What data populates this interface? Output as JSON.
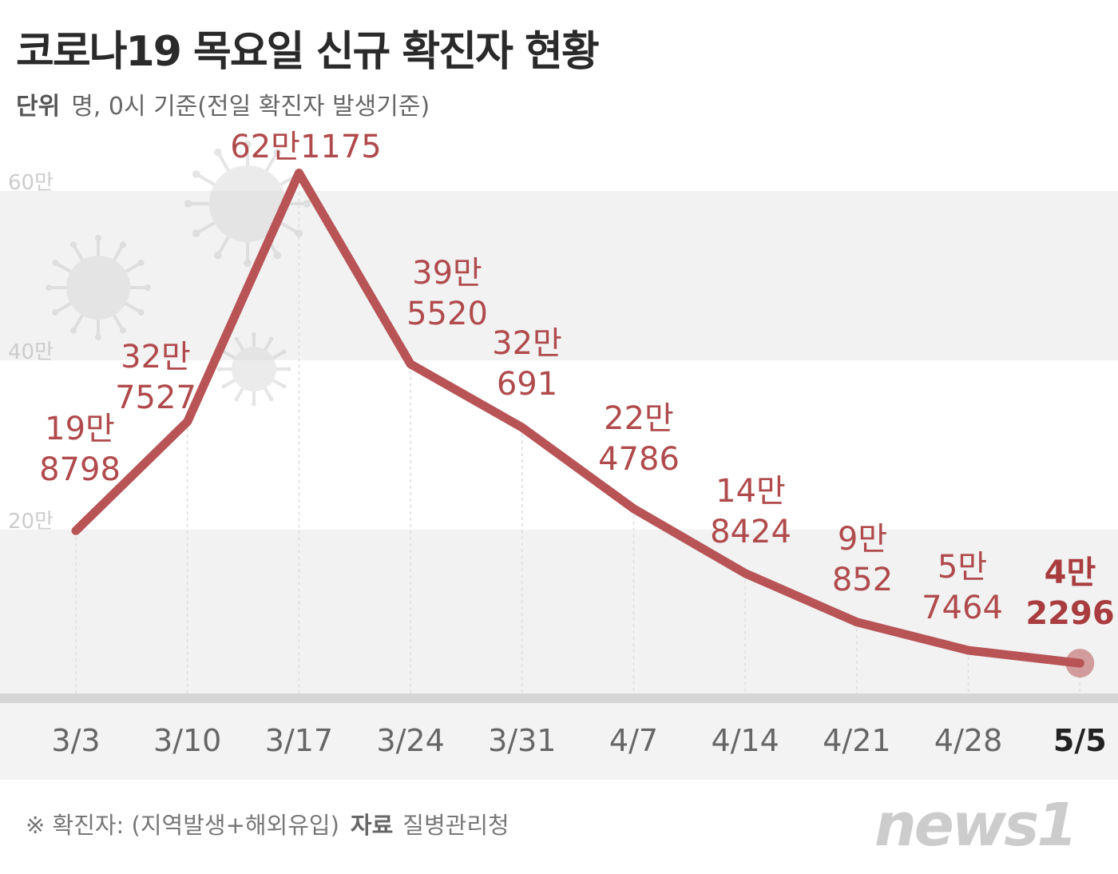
{
  "title": "코로나19 목요일 신규 확진자 현황",
  "unit_label": "단위",
  "unit_text": "명, 0시 기준(전일 확진자 발생기준)",
  "footer": {
    "note": "※ 확진자: (지역발생+해외유입)",
    "source_label": "자료",
    "source": "질병관리청"
  },
  "logo": "news1",
  "colors": {
    "line": "#b85456",
    "label": "#b04a4c",
    "band": "#f2f2f2"
  },
  "chart_data": {
    "type": "line",
    "title": "코로나19 목요일 신규 확진자 현황",
    "xlabel": "",
    "ylabel": "명",
    "ylim": [
      0,
      650000
    ],
    "yticks": [
      200000,
      400000,
      600000
    ],
    "ytick_labels": [
      "20만",
      "40만",
      "60만"
    ],
    "categories": [
      "3/3",
      "3/10",
      "3/17",
      "3/24",
      "3/31",
      "4/7",
      "4/14",
      "4/21",
      "4/28",
      "5/5"
    ],
    "values": [
      198798,
      327527,
      621175,
      395520,
      320691,
      224786,
      148424,
      90852,
      57464,
      42296
    ],
    "data_labels": [
      [
        "19만",
        "8798"
      ],
      [
        "32만",
        "7527"
      ],
      [
        "62만1175"
      ],
      [
        "39만",
        "5520"
      ],
      [
        "32만",
        "691"
      ],
      [
        "22만",
        "4786"
      ],
      [
        "14만",
        "8424"
      ],
      [
        "9만",
        "852"
      ],
      [
        "5만",
        "7464"
      ],
      [
        "4만",
        "2296"
      ]
    ],
    "highlight": "5/5",
    "grid": true
  }
}
